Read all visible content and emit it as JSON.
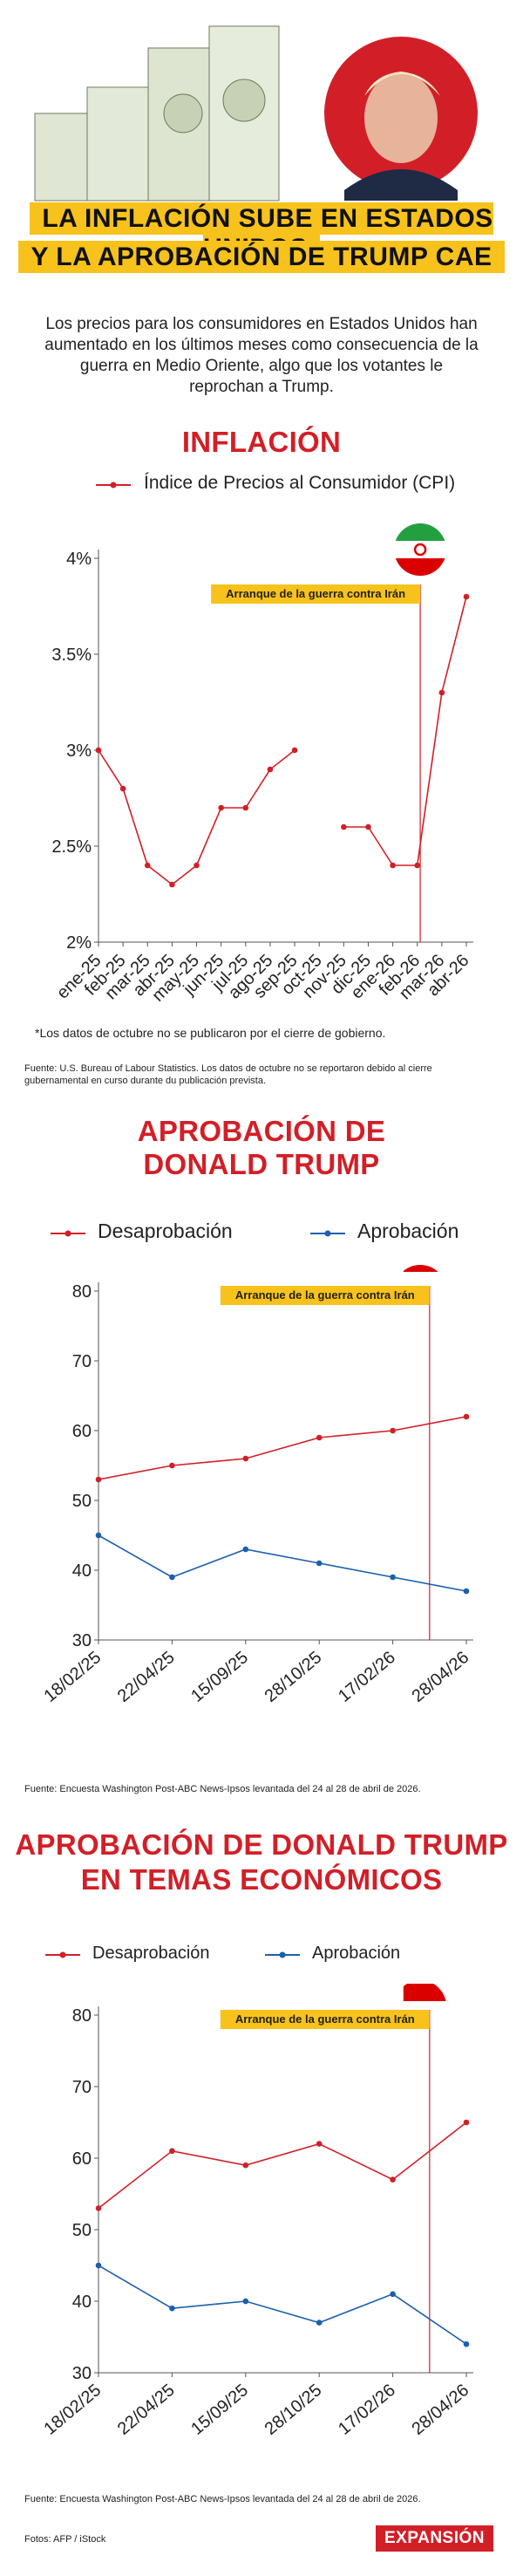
{
  "header": {
    "title_line1": "LA INFLACIÓN SUBE EN ESTADOS UNIDOS",
    "title_line2": "Y LA APROBACIÓN DE TRUMP CAE",
    "intro": "Los precios para los consumidores en Estados Unidos han aumentado en los últimos meses como consecuencia de la guerra en Medio Oriente, algo que los votantes le reprochan a Trump."
  },
  "annotation_label": "Arranque de la guerra contra Irán",
  "colors": {
    "accent": "#d21f27",
    "blue": "#1b5fae",
    "yellow": "#f7c21b",
    "iran_green": "#239f40"
  },
  "inflation": {
    "title": "INFLACIÓN",
    "legend": "Índice de Precios al Consumidor (CPI)",
    "note": "*Los datos de octubre no se publicaron por el cierre de gobierno.",
    "source": "Fuente: U.S. Bureau of Labour Statistics. Los datos de octubre no se reportaron debido al cierre gubernamental en curso durante du publicación prevista."
  },
  "approval": {
    "title_line1": "APROBACIÓN DE",
    "title_line2": "DONALD TRUMP",
    "legend_disapproval": "Desaprobación",
    "legend_approval": "Aprobación",
    "source": "Fuente: Encuesta Washington Post-ABC News-Ipsos levantada del 24 al 28 de abril de 2026."
  },
  "economic": {
    "title_line1": "APROBACIÓN DE DONALD TRUMP",
    "title_line2": "EN TEMAS ECONÓMICOS",
    "legend_disapproval": "Desaprobación",
    "legend_approval": "Aprobación",
    "source": "Fuente: Encuesta Washington Post-ABC News-Ipsos levantada del 24 al 28 de abril de 2026."
  },
  "footer": {
    "credit": "Fotos: AFP / iStock",
    "logo": "EXPANSIÓN"
  },
  "chart_data": [
    {
      "type": "line",
      "categories": [
        "ene-25",
        "feb-25",
        "mar-25",
        "abr-25",
        "may-25",
        "jun-25",
        "jul-25",
        "ago-25",
        "sep-25",
        "oct-25",
        "nov-25",
        "dic-25",
        "ene-26",
        "feb-26",
        "mar-26",
        "abr-26"
      ],
      "series": [
        {
          "name": "Índice de Precios al Consumidor (CPI)",
          "values": [
            3.0,
            2.8,
            2.4,
            2.3,
            2.4,
            2.7,
            2.7,
            2.9,
            3.0,
            null,
            2.6,
            2.6,
            2.4,
            2.4,
            3.3,
            3.8
          ]
        }
      ],
      "yticks": [
        "2%",
        "2.5%",
        "3%",
        "3.5%",
        "4%"
      ],
      "ylim": [
        2,
        4
      ],
      "event_after_index": 13
    },
    {
      "type": "line",
      "categories": [
        "18/02/25",
        "22/04/25",
        "15/09/25",
        "28/10/25",
        "17/02/26",
        "28/04/26"
      ],
      "series": [
        {
          "name": "Desaprobación",
          "values": [
            53,
            55,
            56,
            59,
            60,
            62
          ]
        },
        {
          "name": "Aprobación",
          "values": [
            45,
            39,
            43,
            41,
            39,
            37
          ]
        }
      ],
      "yticks": [
        "30",
        "40",
        "50",
        "60",
        "70",
        "80"
      ],
      "ylim": [
        30,
        80
      ],
      "event_position": 4.5
    },
    {
      "type": "line",
      "categories": [
        "18/02/25",
        "22/04/25",
        "15/09/25",
        "28/10/25",
        "17/02/26",
        "28/04/26"
      ],
      "series": [
        {
          "name": "Desaprobación",
          "values": [
            53,
            61,
            59,
            62,
            57,
            65
          ]
        },
        {
          "name": "Aprobación",
          "values": [
            45,
            39,
            40,
            37,
            41,
            34
          ]
        }
      ],
      "yticks": [
        "30",
        "40",
        "50",
        "60",
        "70",
        "80"
      ],
      "ylim": [
        30,
        80
      ],
      "event_position": 4.5
    }
  ]
}
